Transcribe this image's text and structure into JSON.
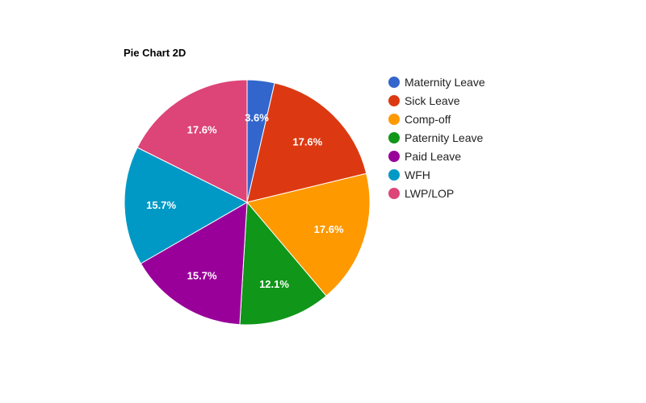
{
  "chart_data": {
    "type": "pie",
    "title": "Pie Chart 2D",
    "legend_position": "right",
    "slices": [
      {
        "label": "Maternity Leave",
        "value": 3.6,
        "color": "#3366cc",
        "display": "3.6%"
      },
      {
        "label": "Sick Leave",
        "value": 17.6,
        "color": "#dc3912",
        "display": "17.6%"
      },
      {
        "label": "Comp-off",
        "value": 17.6,
        "color": "#ff9900",
        "display": "17.6%"
      },
      {
        "label": "Paternity Leave",
        "value": 12.1,
        "color": "#109618",
        "display": "12.1%"
      },
      {
        "label": "Paid Leave",
        "value": 15.7,
        "color": "#990099",
        "display": "15.7%"
      },
      {
        "label": "WFH",
        "value": 15.7,
        "color": "#0099c6",
        "display": "15.7%"
      },
      {
        "label": "LWP/LOP",
        "value": 17.6,
        "color": "#dd4477",
        "display": "17.6%"
      }
    ]
  }
}
